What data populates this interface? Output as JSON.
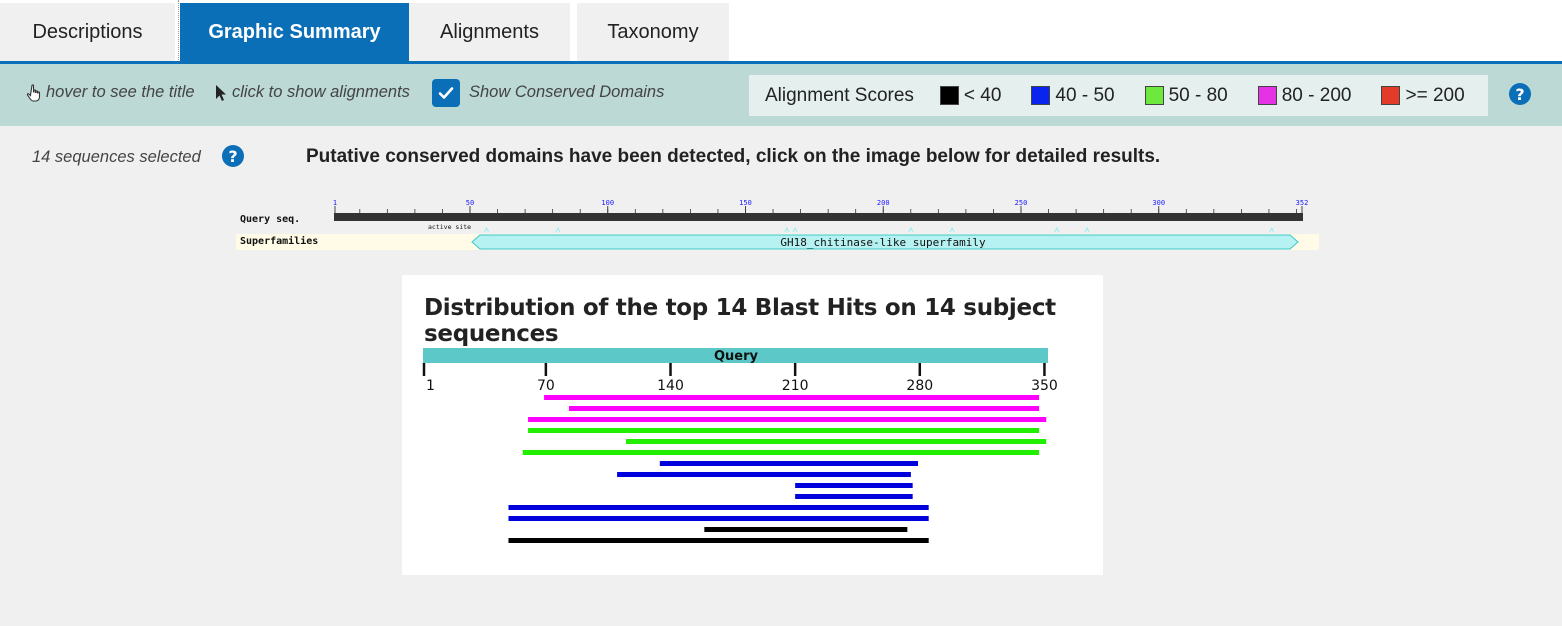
{
  "tabs": [
    {
      "label": "Descriptions",
      "active": false
    },
    {
      "label": "Graphic Summary",
      "active": true
    },
    {
      "label": "Alignments",
      "active": false
    },
    {
      "label": "Taxonomy",
      "active": false
    }
  ],
  "toolbar": {
    "hover_hint": "hover to see the title",
    "click_hint": "click to show alignments",
    "show_domains_label": "Show Conserved Domains",
    "show_domains_checked": true,
    "scores_title": "Alignment Scores",
    "legend": [
      {
        "label": "< 40",
        "color": "#000000"
      },
      {
        "label": "40 - 50",
        "color": "#0a24f0"
      },
      {
        "label": "50 - 80",
        "color": "#6de83c"
      },
      {
        "label": "80 - 200",
        "color": "#e432e4"
      },
      {
        "label": ">= 200",
        "color": "#e23b2a"
      }
    ],
    "help": "?"
  },
  "main": {
    "selected_text": "14 sequences selected",
    "help": "?",
    "cdd_message": "Putative conserved domains have been detected, click on the image below for detailed results."
  },
  "cdd": {
    "query_label": "Query seq.",
    "superfamilies_label": "Superfamilies",
    "active_site_label": "active site",
    "domain_label": "GH18_chitinase-like superfamily",
    "ticks": [
      "1",
      "50",
      "100",
      "150",
      "200",
      "250",
      "300",
      "352"
    ]
  },
  "distribution": {
    "title": "Distribution of the top 14 Blast Hits on 14 subject sequences",
    "query_label": "Query",
    "tick_labels": [
      "1",
      "70",
      "140",
      "210",
      "280",
      "350"
    ]
  },
  "chart_data": {
    "type": "bar",
    "title": "Distribution of the top 14 Blast Hits on 14 subject sequences",
    "xlabel": "",
    "ylabel": "",
    "xlim": [
      1,
      352
    ],
    "hits": [
      {
        "start": 69,
        "end": 347,
        "score_class": "80 - 200",
        "color": "#ff00ff"
      },
      {
        "start": 83,
        "end": 347,
        "score_class": "80 - 200",
        "color": "#ff00ff"
      },
      {
        "start": 60,
        "end": 351,
        "score_class": "80 - 200",
        "color": "#ff00ff"
      },
      {
        "start": 60,
        "end": 347,
        "score_class": "50 - 80",
        "color": "#22ee00"
      },
      {
        "start": 115,
        "end": 351,
        "score_class": "50 - 80",
        "color": "#22ee00"
      },
      {
        "start": 57,
        "end": 347,
        "score_class": "50 - 80",
        "color": "#22ee00"
      },
      {
        "start": 134,
        "end": 279,
        "score_class": "40 - 50",
        "color": "#0000dd"
      },
      {
        "start": 110,
        "end": 275,
        "score_class": "40 - 50",
        "color": "#0000dd"
      },
      {
        "start": 210,
        "end": 276,
        "score_class": "40 - 50",
        "color": "#0000dd"
      },
      {
        "start": 210,
        "end": 276,
        "score_class": "40 - 50",
        "color": "#0000dd"
      },
      {
        "start": 49,
        "end": 285,
        "score_class": "40 - 50",
        "color": "#0000dd"
      },
      {
        "start": 49,
        "end": 285,
        "score_class": "40 - 50",
        "color": "#0000dd"
      },
      {
        "start": 159,
        "end": 273,
        "score_class": "< 40",
        "color": "#000000"
      },
      {
        "start": 49,
        "end": 285,
        "score_class": "< 40",
        "color": "#000000"
      }
    ]
  }
}
